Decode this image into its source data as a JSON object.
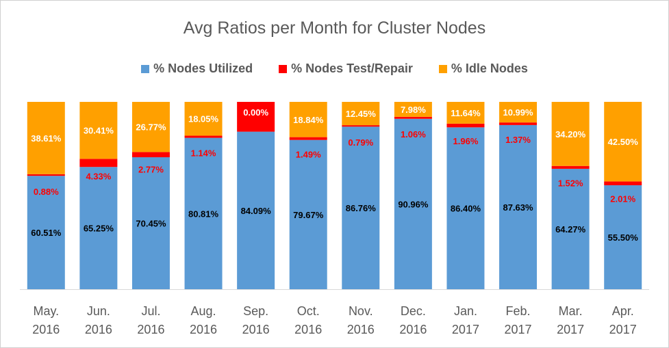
{
  "chart_data": {
    "type": "bar",
    "stacked": true,
    "normalized": true,
    "title": "Avg Ratios per Month for Cluster Nodes",
    "categories": [
      [
        "May.",
        "2016"
      ],
      [
        "Jun.",
        "2016"
      ],
      [
        "Jul.",
        "2016"
      ],
      [
        "Aug.",
        "2016"
      ],
      [
        "Sep.",
        "2016"
      ],
      [
        "Oct.",
        "2016"
      ],
      [
        "Nov.",
        "2016"
      ],
      [
        "Dec.",
        "2016"
      ],
      [
        "Jan.",
        "2017"
      ],
      [
        "Feb.",
        "2017"
      ],
      [
        "Mar.",
        "2017"
      ],
      [
        "Apr.",
        "2017"
      ]
    ],
    "series": [
      {
        "name": "% Nodes Utilized",
        "color": "#5b9bd5",
        "label_color": "#000000",
        "values": [
          60.51,
          65.25,
          70.45,
          80.81,
          84.09,
          79.67,
          86.76,
          90.96,
          86.4,
          87.63,
          64.27,
          55.5
        ],
        "labels": [
          "60.51%",
          "65.25%",
          "70.45%",
          "80.81%",
          "84.09%",
          "79.67%",
          "86.76%",
          "90.96%",
          "86.40%",
          "87.63%",
          "64.27%",
          "55.50%"
        ]
      },
      {
        "name": "% Nodes Test/Repair",
        "color": "#ff0000",
        "label_color": "#ff0000",
        "values": [
          0.88,
          4.33,
          2.77,
          1.14,
          15.91,
          1.49,
          0.79,
          1.06,
          1.96,
          1.37,
          1.52,
          2.01
        ],
        "labels": [
          "0.88%",
          "4.33%",
          "2.77%",
          "1.14%",
          "15.91%",
          "1.49%",
          "0.79%",
          "1.06%",
          "1.96%",
          "1.37%",
          "1.52%",
          "2.01%"
        ]
      },
      {
        "name": "% Idle Nodes",
        "color": "#ffa000",
        "label_color": "#ffffff",
        "values": [
          38.61,
          30.41,
          26.77,
          18.05,
          0.0,
          18.84,
          12.45,
          7.98,
          11.64,
          10.99,
          34.2,
          42.5
        ],
        "labels": [
          "38.61%",
          "30.41%",
          "26.77%",
          "18.05%",
          "0.00%",
          "18.84%",
          "12.45%",
          "7.98%",
          "11.64%",
          "10.99%",
          "34.20%",
          "42.50%"
        ]
      }
    ],
    "legend_position": "top",
    "grid": false,
    "ylim": [
      0,
      100
    ]
  }
}
